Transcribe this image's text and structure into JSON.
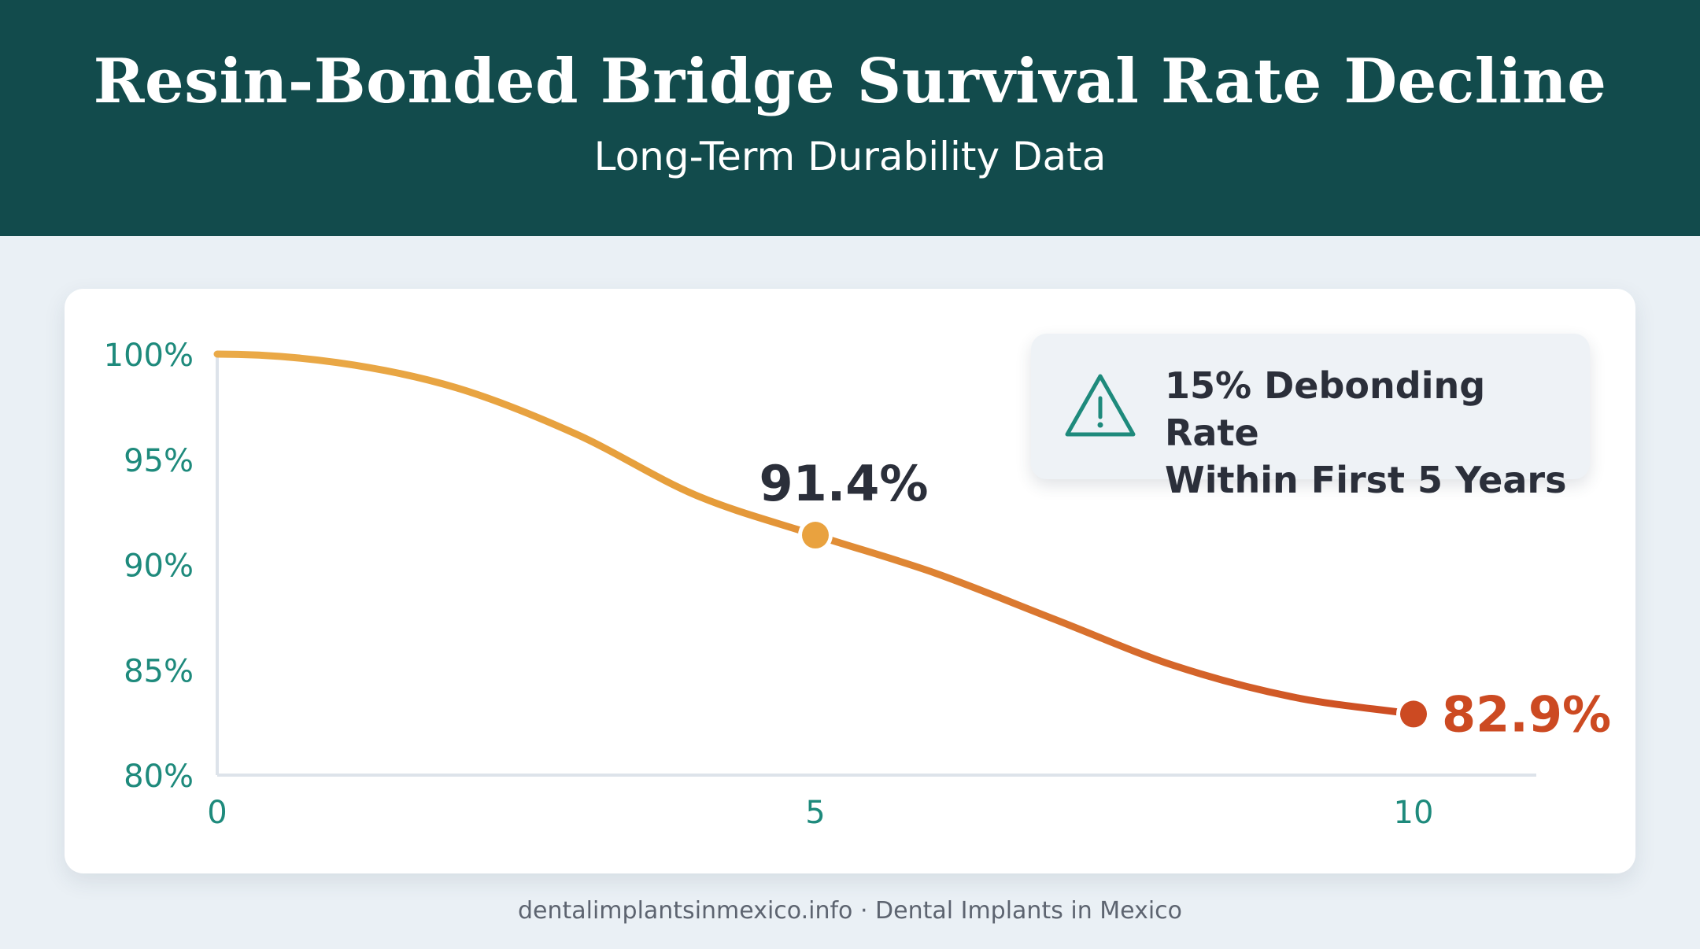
{
  "header": {
    "title": "Resin-Bonded Bridge Survival Rate Decline",
    "subtitle": "Long-Term Durability Data"
  },
  "callout": {
    "line1": "15% Debonding Rate",
    "line2": "Within First 5 Years",
    "icon": "warning-triangle-icon"
  },
  "footer": {
    "text": "dentalimplantsinmexico.info · Dental Implants in Mexico"
  },
  "colors": {
    "header_bg": "#124b4c",
    "teal_text": "#1e8a7c",
    "orange": "#e9a23f",
    "red_orange": "#cc4a22",
    "dark_text": "#2b2f3a"
  },
  "chart_data": {
    "type": "line",
    "title": "Resin-Bonded Bridge Survival Rate Decline",
    "subtitle": "Long-Term Durability Data",
    "xlabel": "",
    "ylabel": "",
    "x": [
      0,
      1,
      2,
      3,
      4,
      5,
      6,
      7,
      8,
      9,
      10
    ],
    "y": [
      100,
      99.6,
      98.4,
      96.2,
      93.3,
      91.4,
      89.6,
      87.4,
      85.2,
      83.7,
      82.9
    ],
    "xlim": [
      0,
      10
    ],
    "ylim": [
      80,
      100
    ],
    "xticks": [
      "0",
      "5",
      "10"
    ],
    "xtick_values": [
      0,
      5,
      10
    ],
    "yticks": [
      "100%",
      "95%",
      "90%",
      "85%",
      "80%"
    ],
    "ytick_values": [
      100,
      95,
      90,
      85,
      80
    ],
    "highlight_points": [
      {
        "x": 5,
        "y": 91.4,
        "label": "91.4%",
        "color": "#e9a23f"
      },
      {
        "x": 10,
        "y": 82.9,
        "label": "82.9%",
        "color": "#cc4a22"
      }
    ],
    "grid": false,
    "legend": "none"
  }
}
